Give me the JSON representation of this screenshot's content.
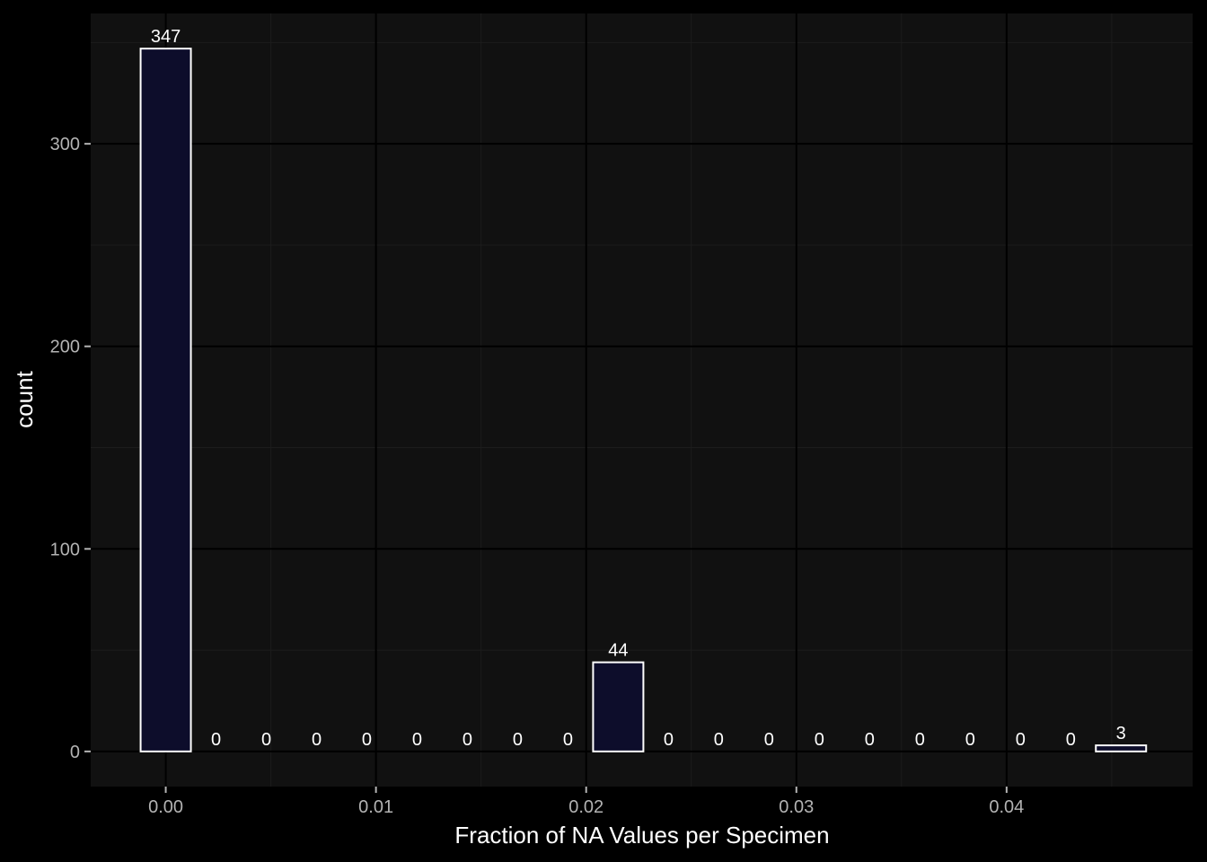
{
  "chart_data": {
    "type": "bar",
    "xlabel": "Fraction of NA Values per Specimen",
    "ylabel": "count",
    "xlim": [
      -0.00357,
      0.04885
    ],
    "ylim": [
      -17.35,
      364.35
    ],
    "x_ticks": [
      0.0,
      0.01,
      0.02,
      0.03,
      0.04
    ],
    "x_tick_labels": [
      "0.00",
      "0.01",
      "0.02",
      "0.03",
      "0.04"
    ],
    "y_ticks": [
      0,
      100,
      200,
      300
    ],
    "y_tick_labels": [
      "0",
      "100",
      "200",
      "300"
    ],
    "bin_width": 0.0023917,
    "bins": [
      {
        "center": 0.0,
        "count": 347,
        "label": "347"
      },
      {
        "center": 0.0023917,
        "count": 0,
        "label": "0"
      },
      {
        "center": 0.0047834,
        "count": 0,
        "label": "0"
      },
      {
        "center": 0.0071751,
        "count": 0,
        "label": "0"
      },
      {
        "center": 0.0095668,
        "count": 0,
        "label": "0"
      },
      {
        "center": 0.0119585,
        "count": 0,
        "label": "0"
      },
      {
        "center": 0.0143502,
        "count": 0,
        "label": "0"
      },
      {
        "center": 0.0167419,
        "count": 0,
        "label": "0"
      },
      {
        "center": 0.0191336,
        "count": 0,
        "label": "0"
      },
      {
        "center": 0.0215253,
        "count": 44,
        "label": "44"
      },
      {
        "center": 0.023917,
        "count": 0,
        "label": "0"
      },
      {
        "center": 0.0263087,
        "count": 0,
        "label": "0"
      },
      {
        "center": 0.0287004,
        "count": 0,
        "label": "0"
      },
      {
        "center": 0.0310921,
        "count": 0,
        "label": "0"
      },
      {
        "center": 0.0334838,
        "count": 0,
        "label": "0"
      },
      {
        "center": 0.0358755,
        "count": 0,
        "label": "0"
      },
      {
        "center": 0.0382672,
        "count": 0,
        "label": "0"
      },
      {
        "center": 0.0406589,
        "count": 0,
        "label": "0"
      },
      {
        "center": 0.0430506,
        "count": 0,
        "label": "0"
      },
      {
        "center": 0.0454423,
        "count": 3,
        "label": "3"
      }
    ],
    "grid": true,
    "colors": {
      "background": "#000000",
      "panel": "#111111",
      "grid_major": "#000000",
      "grid_minor": "#1c1c1c",
      "bar_fill": "#0d0d2b",
      "bar_stroke": "#ffffff",
      "tick_label": "#b3b3b3",
      "label": "#ffffff"
    }
  }
}
